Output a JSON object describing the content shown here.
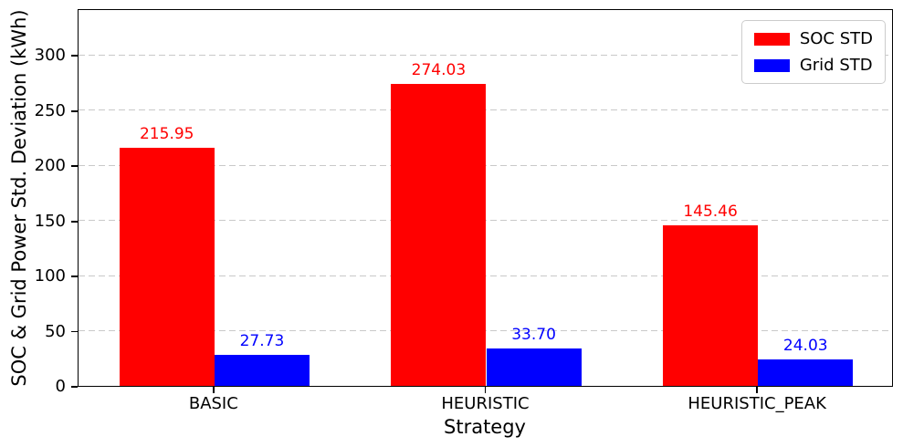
{
  "chart_data": {
    "type": "bar",
    "title": "",
    "xlabel": "Strategy",
    "ylabel": "SOC & Grid Power Std. Deviation (kWh)",
    "categories": [
      "BASIC",
      "HEURISTIC",
      "HEURISTIC_PEAK"
    ],
    "series": [
      {
        "name": "SOC STD",
        "color": "#ff0000",
        "values": [
          215.95,
          274.03,
          145.46
        ]
      },
      {
        "name": "Grid STD",
        "color": "#0000ff",
        "values": [
          27.73,
          33.7,
          24.03
        ]
      }
    ],
    "value_label_decimals": 2,
    "ylim": [
      0,
      342.5
    ],
    "yticks": [
      0,
      50,
      100,
      150,
      200,
      250,
      300
    ],
    "grid": "horizontal dashed",
    "grid_color": "#c9c9c9",
    "legend_position": "upper right",
    "bar_width_fraction": 0.35,
    "background_color": "#ffffff",
    "spine_color": "#000000"
  }
}
